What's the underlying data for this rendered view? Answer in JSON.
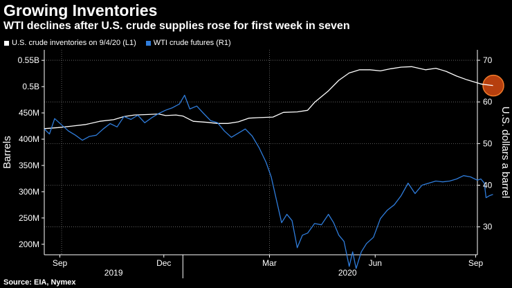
{
  "header": {
    "title": "Growing Inventories",
    "subtitle": "WTI declines after U.S. crude supplies rose for first week in seven"
  },
  "legend": [
    {
      "label": "U.S. crude inventories on 9/4/20 (L1)",
      "color": "#ffffff"
    },
    {
      "label": "WTI crude futures (R1)",
      "color": "#2f7ddc"
    }
  ],
  "source": "Source: EIA, Nymex",
  "chart_data": {
    "type": "line",
    "title": "Growing Inventories",
    "subtitle": "WTI declines after U.S. crude supplies rose for first week in seven",
    "x_domain": [
      0,
      12.5
    ],
    "x_unit": "months since 2019-09-01",
    "x_ticks": [
      {
        "label": "Sep",
        "x": 0.45
      },
      {
        "label": "Dec",
        "x": 3.45
      },
      {
        "label": "Mar",
        "x": 6.5
      },
      {
        "label": "Jun",
        "x": 9.55
      },
      {
        "label": "Sep",
        "x": 12.45
      }
    ],
    "year_labels": [
      {
        "label": "2019",
        "x": 2.0
      },
      {
        "label": "2020",
        "x": 8.75
      }
    ],
    "year_dividers": [
      4.0
    ],
    "x_gridlines": [
      0.5,
      6.5
    ],
    "left_axis": {
      "label": "Barrels",
      "range": [
        180,
        570
      ],
      "unit": "millions of barrels",
      "ticks": [
        {
          "v": 200,
          "label": "200M"
        },
        {
          "v": 250,
          "label": "250M"
        },
        {
          "v": 300,
          "label": "300M"
        },
        {
          "v": 350,
          "label": "350M"
        },
        {
          "v": 400,
          "label": "400M"
        },
        {
          "v": 450,
          "label": "450M"
        },
        {
          "v": 500,
          "label": "0.5B"
        },
        {
          "v": 550,
          "label": "0.55B"
        }
      ]
    },
    "right_axis": {
      "label": "U.S. dollars a barrel",
      "range": [
        23.3,
        72.5
      ],
      "ticks": [
        {
          "v": 30,
          "label": "30"
        },
        {
          "v": 40,
          "label": "40"
        },
        {
          "v": 50,
          "label": "50"
        },
        {
          "v": 60,
          "label": "60"
        },
        {
          "v": 70,
          "label": "70"
        }
      ]
    },
    "h_gridlines_right": [
      30,
      40,
      50,
      60,
      70
    ],
    "series": [
      {
        "name": "U.S. crude inventories on 9/4/20",
        "axis": "left",
        "color": "#ffffff",
        "points": [
          [
            0,
            420
          ],
          [
            0.4,
            422
          ],
          [
            0.8,
            425
          ],
          [
            1.2,
            428
          ],
          [
            1.6,
            434
          ],
          [
            2.0,
            437
          ],
          [
            2.3,
            443
          ],
          [
            2.6,
            446
          ],
          [
            3.0,
            447
          ],
          [
            3.3,
            448
          ],
          [
            3.5,
            445
          ],
          [
            3.8,
            446
          ],
          [
            4.0,
            444
          ],
          [
            4.3,
            434
          ],
          [
            4.7,
            432
          ],
          [
            5.0,
            430
          ],
          [
            5.3,
            430
          ],
          [
            5.6,
            433
          ],
          [
            5.9,
            440
          ],
          [
            6.2,
            441
          ],
          [
            6.6,
            442
          ],
          [
            6.9,
            451
          ],
          [
            7.3,
            452
          ],
          [
            7.6,
            455
          ],
          [
            7.8,
            470
          ],
          [
            8.2,
            492
          ],
          [
            8.5,
            512
          ],
          [
            8.8,
            526
          ],
          [
            9.1,
            532
          ],
          [
            9.4,
            532
          ],
          [
            9.7,
            530
          ],
          [
            10.0,
            534
          ],
          [
            10.3,
            537
          ],
          [
            10.6,
            538
          ],
          [
            11.0,
            532
          ],
          [
            11.3,
            535
          ],
          [
            11.6,
            529
          ],
          [
            11.9,
            520
          ],
          [
            12.2,
            513
          ],
          [
            12.6,
            505
          ],
          [
            12.95,
            502
          ]
        ]
      },
      {
        "name": "WTI crude futures",
        "axis": "right",
        "color": "#2f7ddc",
        "points": [
          [
            0,
            53.5
          ],
          [
            0.15,
            52.3
          ],
          [
            0.3,
            56.0
          ],
          [
            0.5,
            54.5
          ],
          [
            0.7,
            53.0
          ],
          [
            0.9,
            52.0
          ],
          [
            1.1,
            50.8
          ],
          [
            1.3,
            51.7
          ],
          [
            1.5,
            52.0
          ],
          [
            1.7,
            53.5
          ],
          [
            1.9,
            54.8
          ],
          [
            2.1,
            54.0
          ],
          [
            2.3,
            56.5
          ],
          [
            2.5,
            55.8
          ],
          [
            2.7,
            56.8
          ],
          [
            2.9,
            55.0
          ],
          [
            3.1,
            56.2
          ],
          [
            3.3,
            57.2
          ],
          [
            3.5,
            58.0
          ],
          [
            3.7,
            58.6
          ],
          [
            3.9,
            59.5
          ],
          [
            4.05,
            61.6
          ],
          [
            4.2,
            58.3
          ],
          [
            4.4,
            59.0
          ],
          [
            4.6,
            57.2
          ],
          [
            4.8,
            55.5
          ],
          [
            5.0,
            55.0
          ],
          [
            5.2,
            53.0
          ],
          [
            5.4,
            51.5
          ],
          [
            5.6,
            52.5
          ],
          [
            5.8,
            53.5
          ],
          [
            6.0,
            51.8
          ],
          [
            6.2,
            49.0
          ],
          [
            6.4,
            45.5
          ],
          [
            6.55,
            42.0
          ],
          [
            6.7,
            36.5
          ],
          [
            6.85,
            31.0
          ],
          [
            7.0,
            33.0
          ],
          [
            7.15,
            31.5
          ],
          [
            7.3,
            25.0
          ],
          [
            7.45,
            28.0
          ],
          [
            7.6,
            28.5
          ],
          [
            7.8,
            30.8
          ],
          [
            8.0,
            30.5
          ],
          [
            8.2,
            33.0
          ],
          [
            8.35,
            31.0
          ],
          [
            8.5,
            28.0
          ],
          [
            8.65,
            26.5
          ],
          [
            8.8,
            20.5
          ],
          [
            8.9,
            24.0
          ],
          [
            9.0,
            20.0
          ],
          [
            9.15,
            24.0
          ],
          [
            9.3,
            26.0
          ],
          [
            9.5,
            27.5
          ],
          [
            9.7,
            32.0
          ],
          [
            9.9,
            34.0
          ],
          [
            10.1,
            35.3
          ],
          [
            10.3,
            37.5
          ],
          [
            10.5,
            40.5
          ],
          [
            10.7,
            38.0
          ],
          [
            10.9,
            40.0
          ],
          [
            11.1,
            40.5
          ],
          [
            11.3,
            41.0
          ],
          [
            11.5,
            40.8
          ],
          [
            11.7,
            41.0
          ],
          [
            11.9,
            41.5
          ],
          [
            12.1,
            42.3
          ],
          [
            12.3,
            42.0
          ],
          [
            12.5,
            41.2
          ],
          [
            12.6,
            41.5
          ],
          [
            12.7,
            40.5
          ],
          [
            12.75,
            37.0
          ],
          [
            12.85,
            37.5
          ],
          [
            12.95,
            37.8
          ]
        ]
      }
    ],
    "highlight": {
      "series": "U.S. crude inventories on 9/4/20",
      "x": 12.95,
      "y": 502
    }
  }
}
